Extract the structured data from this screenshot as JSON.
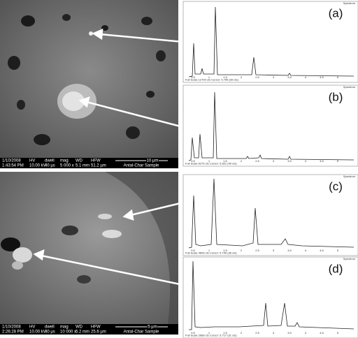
{
  "sem_images": [
    {
      "date": "1/10/2008",
      "time": "1:43:54 PM",
      "fields": [
        {
          "label": "HV",
          "value": "10.00 kV"
        },
        {
          "label": "dwell",
          "value": "40 µs"
        },
        {
          "label": "mag",
          "value": "5 000 x"
        },
        {
          "label": "WD",
          "value": "5.1 mm"
        },
        {
          "label": "HFW",
          "value": "51.2 µm"
        }
      ],
      "scale": "10 µm",
      "sample": "Antal-Char Sample"
    },
    {
      "date": "1/10/2008",
      "time": "2:26:28 PM",
      "fields": [
        {
          "label": "HV",
          "value": "10.00 kV"
        },
        {
          "label": "dwell",
          "value": "40 µs"
        },
        {
          "label": "mag",
          "value": "10 000 x"
        },
        {
          "label": "WD",
          "value": "5.2 mm"
        },
        {
          "label": "HFW",
          "value": "25.6 µm"
        }
      ],
      "scale": "5 µm",
      "sample": "Antal-Char Sample"
    }
  ],
  "spectra": [
    {
      "label": "(a)",
      "footer": "Full Scale 12700 cts Cursor: 5.795 (39 cts)"
    },
    {
      "label": "(b)",
      "footer": "Full Scale 6275 cts Cursor: 5.821 (40 cts)"
    },
    {
      "label": "(c)",
      "footer": "Full Scale 4606 cts Cursor: 5.795 (36 cts)"
    },
    {
      "label": "(d)",
      "footer": "Full Scale 2668 cts Cursor: 5.717 (31 cts)"
    }
  ],
  "spectrum_title": "Spectrum",
  "spectrum_axis": [
    "0.5",
    "1",
    "1.5",
    "2",
    "2.5",
    "3",
    "3.5",
    "4",
    "4.5",
    "5"
  ]
}
